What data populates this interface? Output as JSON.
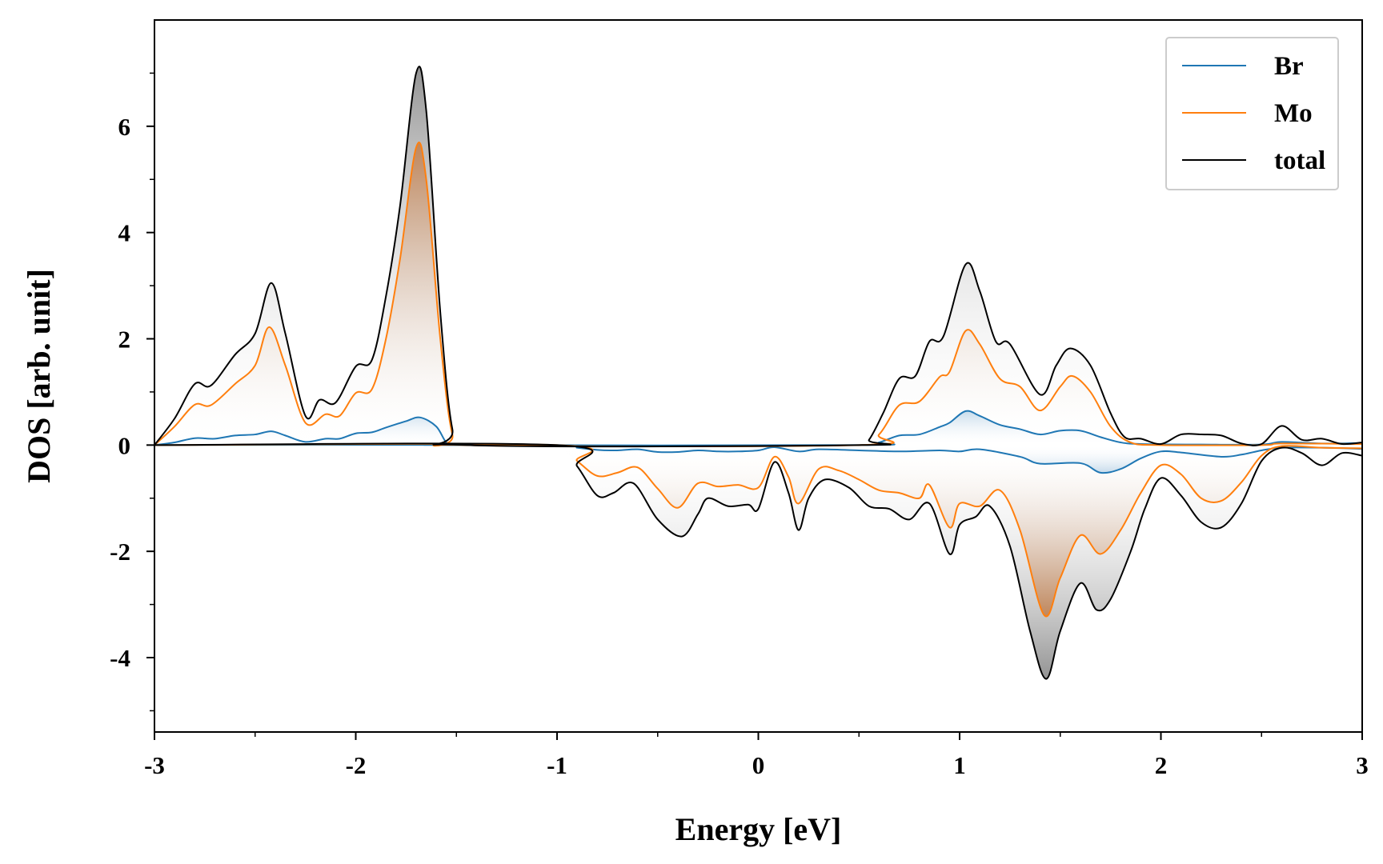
{
  "chart_data": {
    "type": "line",
    "title": "",
    "xlabel": "Energy [eV]",
    "ylabel": "DOS [arb. unit]",
    "xlim": [
      -3,
      3
    ],
    "ylim": [
      -5.4,
      8.0
    ],
    "xticks": [
      -3,
      -2,
      -1,
      0,
      1,
      2,
      3
    ],
    "xtick_labels": [
      "-3",
      "-2",
      "-1",
      "0",
      "1",
      "2",
      "3"
    ],
    "yticks": [
      -4,
      -2,
      0,
      2,
      4,
      6
    ],
    "ytick_labels": [
      "-4",
      "-2",
      "0",
      "2",
      "4",
      "6"
    ],
    "grid": false,
    "legend_position": "top-right",
    "legend": [
      "Br",
      "Mo",
      "total"
    ],
    "series": [
      {
        "name": "Br",
        "color": "#1f77b4",
        "spin_up": [
          [
            -3.0,
            0.0
          ],
          [
            -2.9,
            0.05
          ],
          [
            -2.8,
            0.13
          ],
          [
            -2.7,
            0.12
          ],
          [
            -2.6,
            0.18
          ],
          [
            -2.5,
            0.2
          ],
          [
            -2.42,
            0.26
          ],
          [
            -2.35,
            0.18
          ],
          [
            -2.25,
            0.06
          ],
          [
            -2.15,
            0.12
          ],
          [
            -2.08,
            0.12
          ],
          [
            -2.0,
            0.22
          ],
          [
            -1.92,
            0.24
          ],
          [
            -1.85,
            0.33
          ],
          [
            -1.75,
            0.45
          ],
          [
            -1.68,
            0.52
          ],
          [
            -1.6,
            0.35
          ],
          [
            -1.55,
            0.05
          ],
          [
            -1.5,
            0.0
          ],
          [
            0.5,
            0.0
          ],
          [
            0.6,
            0.05
          ],
          [
            0.7,
            0.18
          ],
          [
            0.8,
            0.2
          ],
          [
            0.9,
            0.34
          ],
          [
            0.95,
            0.42
          ],
          [
            1.03,
            0.64
          ],
          [
            1.1,
            0.55
          ],
          [
            1.2,
            0.38
          ],
          [
            1.3,
            0.3
          ],
          [
            1.4,
            0.2
          ],
          [
            1.5,
            0.27
          ],
          [
            1.6,
            0.27
          ],
          [
            1.7,
            0.15
          ],
          [
            1.8,
            0.05
          ],
          [
            1.9,
            0.02
          ],
          [
            2.2,
            0.01
          ],
          [
            2.5,
            0.01
          ],
          [
            2.6,
            0.06
          ],
          [
            2.8,
            0.03
          ],
          [
            3.0,
            0.04
          ]
        ],
        "spin_down": [
          [
            -1.0,
            0.0
          ],
          [
            -0.9,
            -0.05
          ],
          [
            -0.8,
            -0.09
          ],
          [
            -0.7,
            -0.1
          ],
          [
            -0.6,
            -0.08
          ],
          [
            -0.5,
            -0.13
          ],
          [
            -0.4,
            -0.13
          ],
          [
            -0.3,
            -0.1
          ],
          [
            -0.2,
            -0.12
          ],
          [
            -0.1,
            -0.12
          ],
          [
            0.0,
            -0.1
          ],
          [
            0.08,
            -0.04
          ],
          [
            0.2,
            -0.12
          ],
          [
            0.3,
            -0.08
          ],
          [
            0.5,
            -0.1
          ],
          [
            0.7,
            -0.12
          ],
          [
            0.9,
            -0.1
          ],
          [
            1.0,
            -0.12
          ],
          [
            1.1,
            -0.08
          ],
          [
            1.3,
            -0.22
          ],
          [
            1.4,
            -0.35
          ],
          [
            1.6,
            -0.34
          ],
          [
            1.7,
            -0.52
          ],
          [
            1.8,
            -0.45
          ],
          [
            1.9,
            -0.25
          ],
          [
            2.0,
            -0.12
          ],
          [
            2.1,
            -0.14
          ],
          [
            2.3,
            -0.22
          ],
          [
            2.4,
            -0.18
          ],
          [
            2.5,
            -0.1
          ],
          [
            2.6,
            -0.05
          ],
          [
            2.8,
            -0.05
          ],
          [
            3.0,
            -0.07
          ]
        ]
      },
      {
        "name": "Mo",
        "color": "#ff7f0e",
        "spin_up": [
          [
            -3.0,
            0.0
          ],
          [
            -2.9,
            0.35
          ],
          [
            -2.8,
            0.76
          ],
          [
            -2.72,
            0.75
          ],
          [
            -2.6,
            1.15
          ],
          [
            -2.5,
            1.5
          ],
          [
            -2.43,
            2.22
          ],
          [
            -2.35,
            1.5
          ],
          [
            -2.25,
            0.42
          ],
          [
            -2.15,
            0.58
          ],
          [
            -2.08,
            0.55
          ],
          [
            -2.0,
            0.98
          ],
          [
            -1.92,
            1.05
          ],
          [
            -1.85,
            2.0
          ],
          [
            -1.78,
            3.5
          ],
          [
            -1.7,
            5.6
          ],
          [
            -1.65,
            5.0
          ],
          [
            -1.58,
            2.0
          ],
          [
            -1.52,
            0.2
          ],
          [
            -1.45,
            0.0
          ],
          [
            0.5,
            0.0
          ],
          [
            0.6,
            0.2
          ],
          [
            0.7,
            0.75
          ],
          [
            0.8,
            0.82
          ],
          [
            0.9,
            1.28
          ],
          [
            0.95,
            1.38
          ],
          [
            1.03,
            2.15
          ],
          [
            1.1,
            1.9
          ],
          [
            1.2,
            1.25
          ],
          [
            1.3,
            1.1
          ],
          [
            1.4,
            0.65
          ],
          [
            1.5,
            1.1
          ],
          [
            1.56,
            1.3
          ],
          [
            1.65,
            1.0
          ],
          [
            1.75,
            0.35
          ],
          [
            1.85,
            0.05
          ],
          [
            2.0,
            0.0
          ],
          [
            2.5,
            0.0
          ],
          [
            2.6,
            0.03
          ],
          [
            3.0,
            0.02
          ]
        ],
        "spin_down": [
          [
            -1.0,
            0.0
          ],
          [
            -0.9,
            -0.3
          ],
          [
            -0.8,
            -0.58
          ],
          [
            -0.7,
            -0.52
          ],
          [
            -0.6,
            -0.42
          ],
          [
            -0.5,
            -0.82
          ],
          [
            -0.4,
            -1.18
          ],
          [
            -0.3,
            -0.72
          ],
          [
            -0.2,
            -0.78
          ],
          [
            -0.1,
            -0.75
          ],
          [
            0.0,
            -0.8
          ],
          [
            0.08,
            -0.22
          ],
          [
            0.15,
            -0.6
          ],
          [
            0.2,
            -1.1
          ],
          [
            0.3,
            -0.45
          ],
          [
            0.4,
            -0.48
          ],
          [
            0.5,
            -0.65
          ],
          [
            0.6,
            -0.85
          ],
          [
            0.7,
            -0.9
          ],
          [
            0.8,
            -1.0
          ],
          [
            0.85,
            -0.75
          ],
          [
            0.95,
            -1.55
          ],
          [
            1.0,
            -1.1
          ],
          [
            1.1,
            -1.15
          ],
          [
            1.2,
            -0.85
          ],
          [
            1.3,
            -1.6
          ],
          [
            1.42,
            -3.2
          ],
          [
            1.5,
            -2.5
          ],
          [
            1.6,
            -1.7
          ],
          [
            1.7,
            -2.05
          ],
          [
            1.8,
            -1.6
          ],
          [
            1.9,
            -0.9
          ],
          [
            2.0,
            -0.38
          ],
          [
            2.1,
            -0.55
          ],
          [
            2.2,
            -1.0
          ],
          [
            2.3,
            -1.05
          ],
          [
            2.4,
            -0.7
          ],
          [
            2.5,
            -0.2
          ],
          [
            2.6,
            -0.02
          ],
          [
            2.8,
            -0.05
          ],
          [
            3.0,
            -0.06
          ]
        ]
      },
      {
        "name": "total",
        "color": "#000000",
        "spin_up": [
          [
            -3.0,
            0.0
          ],
          [
            -2.9,
            0.5
          ],
          [
            -2.8,
            1.15
          ],
          [
            -2.72,
            1.12
          ],
          [
            -2.6,
            1.7
          ],
          [
            -2.5,
            2.1
          ],
          [
            -2.42,
            3.05
          ],
          [
            -2.35,
            2.1
          ],
          [
            -2.25,
            0.55
          ],
          [
            -2.18,
            0.85
          ],
          [
            -2.1,
            0.8
          ],
          [
            -2.0,
            1.48
          ],
          [
            -1.92,
            1.6
          ],
          [
            -1.85,
            2.8
          ],
          [
            -1.78,
            4.5
          ],
          [
            -1.7,
            7.0
          ],
          [
            -1.65,
            6.3
          ],
          [
            -1.58,
            2.5
          ],
          [
            -1.52,
            0.3
          ],
          [
            -1.45,
            0.0
          ],
          [
            0.5,
            0.0
          ],
          [
            0.55,
            0.1
          ],
          [
            0.62,
            0.6
          ],
          [
            0.7,
            1.25
          ],
          [
            0.78,
            1.3
          ],
          [
            0.85,
            1.95
          ],
          [
            0.92,
            2.05
          ],
          [
            1.03,
            3.4
          ],
          [
            1.1,
            2.9
          ],
          [
            1.18,
            1.95
          ],
          [
            1.25,
            1.9
          ],
          [
            1.4,
            0.95
          ],
          [
            1.48,
            1.5
          ],
          [
            1.55,
            1.82
          ],
          [
            1.65,
            1.5
          ],
          [
            1.75,
            0.6
          ],
          [
            1.82,
            0.15
          ],
          [
            1.9,
            0.12
          ],
          [
            2.0,
            0.02
          ],
          [
            2.1,
            0.2
          ],
          [
            2.2,
            0.2
          ],
          [
            2.3,
            0.18
          ],
          [
            2.4,
            0.03
          ],
          [
            2.5,
            0.02
          ],
          [
            2.6,
            0.36
          ],
          [
            2.7,
            0.1
          ],
          [
            2.8,
            0.12
          ],
          [
            2.9,
            0.02
          ],
          [
            3.0,
            0.05
          ]
        ],
        "spin_down": [
          [
            -1.0,
            0.0
          ],
          [
            -0.9,
            -0.4
          ],
          [
            -0.8,
            -0.95
          ],
          [
            -0.72,
            -0.9
          ],
          [
            -0.62,
            -0.72
          ],
          [
            -0.5,
            -1.4
          ],
          [
            -0.38,
            -1.72
          ],
          [
            -0.3,
            -1.3
          ],
          [
            -0.25,
            -1.0
          ],
          [
            -0.15,
            -1.15
          ],
          [
            -0.05,
            -1.12
          ],
          [
            0.0,
            -1.2
          ],
          [
            0.08,
            -0.32
          ],
          [
            0.15,
            -0.9
          ],
          [
            0.2,
            -1.6
          ],
          [
            0.25,
            -1.0
          ],
          [
            0.33,
            -0.65
          ],
          [
            0.45,
            -0.8
          ],
          [
            0.55,
            -1.15
          ],
          [
            0.65,
            -1.2
          ],
          [
            0.75,
            -1.4
          ],
          [
            0.85,
            -1.1
          ],
          [
            0.95,
            -2.05
          ],
          [
            1.0,
            -1.5
          ],
          [
            1.08,
            -1.35
          ],
          [
            1.15,
            -1.15
          ],
          [
            1.25,
            -1.9
          ],
          [
            1.35,
            -3.5
          ],
          [
            1.43,
            -4.4
          ],
          [
            1.5,
            -3.5
          ],
          [
            1.6,
            -2.6
          ],
          [
            1.68,
            -3.1
          ],
          [
            1.75,
            -2.9
          ],
          [
            1.85,
            -2.0
          ],
          [
            1.92,
            -1.2
          ],
          [
            2.0,
            -0.62
          ],
          [
            2.1,
            -0.95
          ],
          [
            2.2,
            -1.45
          ],
          [
            2.3,
            -1.55
          ],
          [
            2.4,
            -1.1
          ],
          [
            2.5,
            -0.3
          ],
          [
            2.6,
            -0.05
          ],
          [
            2.7,
            -0.15
          ],
          [
            2.8,
            -0.38
          ],
          [
            2.9,
            -0.15
          ],
          [
            3.0,
            -0.2
          ]
        ]
      }
    ]
  }
}
